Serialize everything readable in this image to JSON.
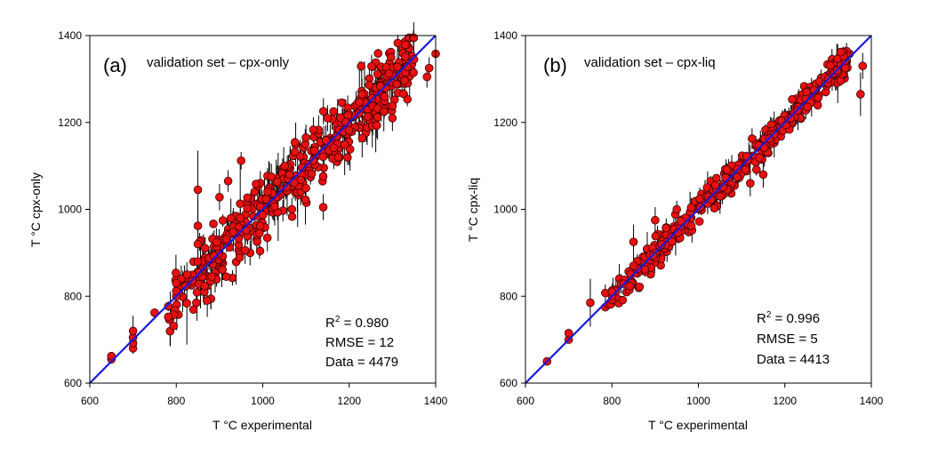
{
  "chart_data": [
    {
      "type": "scatter",
      "panel_tag": "(a)",
      "title": "validation set – cpx-only",
      "xlabel": "T °C experimental",
      "ylabel": "T °C cpx-only",
      "xlim": [
        600,
        1400
      ],
      "ylim": [
        600,
        1400
      ],
      "x_ticks": [
        600,
        800,
        1000,
        1200,
        1400
      ],
      "y_ticks": [
        600,
        800,
        1000,
        1200,
        1400
      ],
      "reference_line": {
        "from": [
          600,
          600
        ],
        "to": [
          1400,
          1400
        ],
        "color": "#1a1adc"
      },
      "marker_color": "#e81010",
      "stats": {
        "r2_prefix": "R",
        "r2_sup": "2",
        "r2_value": " = 0.980",
        "rmse": "RMSE = 12",
        "n": "Data = 4479"
      },
      "n_points": 480,
      "noise_sd": 38,
      "err_scale": 40,
      "seed": 17,
      "points": [
        {
          "x": 650,
          "y": 655,
          "e": 10
        },
        {
          "x": 650,
          "y": 662,
          "e": 8
        },
        {
          "x": 700,
          "y": 680,
          "e": 12
        },
        {
          "x": 700,
          "y": 692,
          "e": 14
        },
        {
          "x": 700,
          "y": 705,
          "e": 10
        },
        {
          "x": 700,
          "y": 720,
          "e": 35
        },
        {
          "x": 750,
          "y": 762,
          "e": 8
        },
        {
          "x": 800,
          "y": 800,
          "e": 12
        },
        {
          "x": 800,
          "y": 812,
          "e": 10
        },
        {
          "x": 800,
          "y": 830,
          "e": 20
        },
        {
          "x": 850,
          "y": 1045,
          "e": 90
        },
        {
          "x": 850,
          "y": 962,
          "e": 60
        },
        {
          "x": 850,
          "y": 920,
          "e": 50
        },
        {
          "x": 850,
          "y": 880,
          "e": 40
        },
        {
          "x": 900,
          "y": 1028,
          "e": 30
        },
        {
          "x": 920,
          "y": 1065,
          "e": 25
        },
        {
          "x": 950,
          "y": 1112,
          "e": 20
        },
        {
          "x": 1020,
          "y": 1075,
          "e": 30
        },
        {
          "x": 1100,
          "y": 1165,
          "e": 30
        },
        {
          "x": 1140,
          "y": 1005,
          "e": 30
        },
        {
          "x": 1150,
          "y": 1210,
          "e": 30
        },
        {
          "x": 1300,
          "y": 1238,
          "e": 30
        },
        {
          "x": 1300,
          "y": 1210,
          "e": 30
        },
        {
          "x": 1350,
          "y": 1345,
          "e": 20
        },
        {
          "x": 1380,
          "y": 1305,
          "e": 25
        },
        {
          "x": 1385,
          "y": 1325,
          "e": 25
        },
        {
          "x": 1400,
          "y": 1358,
          "e": 30
        }
      ]
    },
    {
      "type": "scatter",
      "panel_tag": "(b)",
      "title": "validation set – cpx-liq",
      "xlabel": "T °C experimental",
      "ylabel": "T °C cpx-liq",
      "xlim": [
        600,
        1400
      ],
      "ylim": [
        600,
        1400
      ],
      "x_ticks": [
        600,
        800,
        1000,
        1200,
        1400
      ],
      "y_ticks": [
        600,
        800,
        1000,
        1200,
        1400
      ],
      "reference_line": {
        "from": [
          600,
          600
        ],
        "to": [
          1400,
          1400
        ],
        "color": "#1a1adc"
      },
      "marker_color": "#e81010",
      "stats": {
        "r2_prefix": "R",
        "r2_sup": "2",
        "r2_value": " = 0.996",
        "rmse": "RMSE = 5",
        "n": "Data = 4413"
      },
      "n_points": 430,
      "noise_sd": 16,
      "err_scale": 22,
      "seed": 29,
      "points": [
        {
          "x": 650,
          "y": 650,
          "e": 5
        },
        {
          "x": 700,
          "y": 700,
          "e": 8
        },
        {
          "x": 700,
          "y": 715,
          "e": 10
        },
        {
          "x": 750,
          "y": 785,
          "e": 55
        },
        {
          "x": 800,
          "y": 800,
          "e": 8
        },
        {
          "x": 800,
          "y": 810,
          "e": 8
        },
        {
          "x": 850,
          "y": 925,
          "e": 40
        },
        {
          "x": 850,
          "y": 870,
          "e": 20
        },
        {
          "x": 900,
          "y": 975,
          "e": 30
        },
        {
          "x": 950,
          "y": 1000,
          "e": 20
        },
        {
          "x": 1050,
          "y": 1030,
          "e": 40
        },
        {
          "x": 1120,
          "y": 1060,
          "e": 30
        },
        {
          "x": 1150,
          "y": 1080,
          "e": 30
        },
        {
          "x": 1250,
          "y": 1270,
          "e": 20
        },
        {
          "x": 1300,
          "y": 1300,
          "e": 15
        },
        {
          "x": 1340,
          "y": 1325,
          "e": 15
        },
        {
          "x": 1375,
          "y": 1265,
          "e": 50
        },
        {
          "x": 1380,
          "y": 1330,
          "e": 30
        }
      ]
    }
  ]
}
